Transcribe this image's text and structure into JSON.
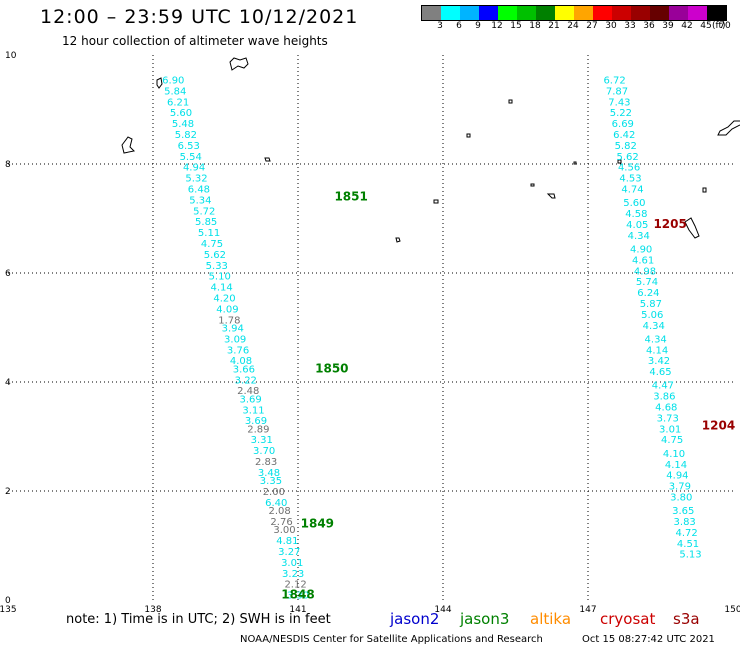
{
  "header": {
    "title": "12:00 – 23:59 UTC 10/12/2021",
    "subtitle": "12 hour collection of altimeter wave heights"
  },
  "legend": {
    "colors": [
      "#808080",
      "#00ffff",
      "#00b4ff",
      "#0000ff",
      "#00ff00",
      "#00c000",
      "#008000",
      "#ffff00",
      "#ffa500",
      "#ff0000",
      "#cc0000",
      "#990000",
      "#660000",
      "#990099",
      "#cc00cc",
      "#000000"
    ],
    "labels": [
      "3",
      "6",
      "9",
      "12",
      "15",
      "18",
      "21",
      "24",
      "27",
      "30",
      "33",
      "36",
      "39",
      "42",
      "45",
      "70"
    ],
    "unit": "(ft)"
  },
  "axes": {
    "x_ticks": [
      "135",
      "138",
      "141",
      "144",
      "147",
      "150"
    ],
    "y_ticks": [
      "0",
      "2",
      "4",
      "6",
      "8",
      "10"
    ]
  },
  "tracks": [
    {
      "satellite": "jason3",
      "points": [
        [
          "3.30",
          141.0,
          0.1,
          "cyan"
        ],
        [
          "2.12",
          140.95,
          0.3,
          "gray"
        ],
        [
          "3.23",
          140.9,
          0.5,
          "cyan"
        ],
        [
          "3.01",
          140.88,
          0.7,
          "cyan"
        ],
        [
          "3.27",
          140.82,
          0.9,
          "cyan"
        ],
        [
          "4.81",
          140.78,
          1.1,
          "cyan"
        ],
        [
          "3.00",
          140.72,
          1.3,
          "gray"
        ],
        [
          "2.76",
          140.66,
          1.45,
          "gray"
        ],
        [
          "2.08",
          140.62,
          1.65,
          "gray"
        ],
        [
          "6.40",
          140.55,
          1.8,
          "cyan"
        ],
        [
          "2.00",
          140.5,
          2.0,
          "gray"
        ],
        [
          "3.35",
          140.44,
          2.2,
          "cyan"
        ],
        [
          "3.48",
          140.4,
          2.35,
          "cyan"
        ],
        [
          "2.83",
          140.34,
          2.55,
          "gray"
        ],
        [
          "3.70",
          140.3,
          2.75,
          "cyan"
        ],
        [
          "3.31",
          140.25,
          2.95,
          "cyan"
        ],
        [
          "2.89",
          140.18,
          3.15,
          "gray"
        ],
        [
          "3.69",
          140.13,
          3.3,
          "cyan"
        ],
        [
          "3.11",
          140.08,
          3.5,
          "cyan"
        ],
        [
          "3.69",
          140.02,
          3.7,
          "cyan"
        ],
        [
          "2.48",
          139.97,
          3.85,
          "gray"
        ],
        [
          "3.22",
          139.92,
          4.05,
          "cyan"
        ],
        [
          "3.66",
          139.88,
          4.25,
          "cyan"
        ],
        [
          "4.08",
          139.82,
          4.4,
          "cyan"
        ],
        [
          "3.76",
          139.76,
          4.6,
          "cyan"
        ],
        [
          "3.09",
          139.7,
          4.8,
          "cyan"
        ],
        [
          "3.94",
          139.65,
          5.0,
          "cyan"
        ],
        [
          "1.78",
          139.58,
          5.15,
          "gray"
        ],
        [
          "4.09",
          139.54,
          5.35,
          "cyan"
        ],
        [
          "4.20",
          139.48,
          5.55,
          "cyan"
        ],
        [
          "4.14",
          139.42,
          5.75,
          "cyan"
        ],
        [
          "5.10",
          139.38,
          5.95,
          "cyan"
        ],
        [
          "5.33",
          139.32,
          6.15,
          "cyan"
        ],
        [
          "5.62",
          139.28,
          6.35,
          "cyan"
        ],
        [
          "4.75",
          139.22,
          6.55,
          "cyan"
        ],
        [
          "5.11",
          139.16,
          6.75,
          "cyan"
        ],
        [
          "5.85",
          139.1,
          6.95,
          "cyan"
        ],
        [
          "5.72",
          139.06,
          7.15,
          "cyan"
        ],
        [
          "5.34",
          138.98,
          7.35,
          "cyan"
        ],
        [
          "6.48",
          138.95,
          7.55,
          "cyan"
        ],
        [
          "5.32",
          138.9,
          7.75,
          "cyan"
        ],
        [
          "4.94",
          138.85,
          7.95,
          "cyan"
        ],
        [
          "5.54",
          138.78,
          8.15,
          "cyan"
        ],
        [
          "6.53",
          138.74,
          8.35,
          "cyan"
        ],
        [
          "5.82",
          138.68,
          8.55,
          "cyan"
        ],
        [
          "5.48",
          138.62,
          8.75,
          "cyan"
        ],
        [
          "5.60",
          138.58,
          8.95,
          "cyan"
        ],
        [
          "6.21",
          138.52,
          9.15,
          "cyan"
        ],
        [
          "5.84",
          138.46,
          9.35,
          "cyan"
        ],
        [
          "6.90",
          138.42,
          9.55,
          "cyan"
        ]
      ],
      "time_labels": [
        [
          "1848",
          141.0,
          0.1
        ],
        [
          "1849",
          141.4,
          1.4
        ],
        [
          "1850",
          141.7,
          4.25
        ],
        [
          "1851",
          142.1,
          7.4
        ]
      ]
    },
    {
      "satellite": "cryosat",
      "points": [
        [
          "6.72",
          147.55,
          9.55,
          "cyan"
        ],
        [
          "7.87",
          147.6,
          9.35,
          "cyan"
        ],
        [
          "7.43",
          147.65,
          9.15,
          "cyan"
        ],
        [
          "5.22",
          147.68,
          8.95,
          "cyan"
        ],
        [
          "6.69",
          147.72,
          8.75,
          "cyan"
        ],
        [
          "6.42",
          147.75,
          8.55,
          "cyan"
        ],
        [
          "5.82",
          147.78,
          8.35,
          "cyan"
        ],
        [
          "5.62",
          147.82,
          8.15,
          "cyan"
        ],
        [
          "4.56",
          147.85,
          7.95,
          "cyan"
        ],
        [
          "4.53",
          147.88,
          7.75,
          "cyan"
        ],
        [
          "4.74",
          147.92,
          7.55,
          "cyan"
        ],
        [
          "5.60",
          147.96,
          7.3,
          "cyan"
        ],
        [
          "4.58",
          148.0,
          7.1,
          "cyan"
        ],
        [
          "4.05",
          148.02,
          6.9,
          "cyan"
        ],
        [
          "4.34",
          148.05,
          6.7,
          "cyan"
        ],
        [
          "4.90",
          148.1,
          6.45,
          "cyan"
        ],
        [
          "4.61",
          148.14,
          6.25,
          "cyan"
        ],
        [
          "4.98",
          148.18,
          6.05,
          "cyan"
        ],
        [
          "5.74",
          148.22,
          5.85,
          "cyan"
        ],
        [
          "6.24",
          148.25,
          5.65,
          "cyan"
        ],
        [
          "5.87",
          148.3,
          5.45,
          "cyan"
        ],
        [
          "5.06",
          148.33,
          5.25,
          "cyan"
        ],
        [
          "4.34",
          148.36,
          5.05,
          "cyan"
        ],
        [
          "4.34",
          148.4,
          4.8,
          "cyan"
        ],
        [
          "4.14",
          148.43,
          4.6,
          "cyan"
        ],
        [
          "3.42",
          148.47,
          4.4,
          "cyan"
        ],
        [
          "4.65",
          148.5,
          4.2,
          "cyan"
        ],
        [
          "4.47",
          148.55,
          3.95,
          "cyan"
        ],
        [
          "3.86",
          148.58,
          3.75,
          "cyan"
        ],
        [
          "4.68",
          148.62,
          3.55,
          "cyan"
        ],
        [
          "3.73",
          148.65,
          3.35,
          "cyan"
        ],
        [
          "3.01",
          148.7,
          3.15,
          "cyan"
        ],
        [
          "4.75",
          148.74,
          2.95,
          "cyan"
        ],
        [
          "4.10",
          148.78,
          2.7,
          "cyan"
        ],
        [
          "4.14",
          148.82,
          2.5,
          "cyan"
        ],
        [
          "4.94",
          148.85,
          2.3,
          "cyan"
        ],
        [
          "3.79",
          148.9,
          2.1,
          "cyan"
        ],
        [
          "3.80",
          148.93,
          1.9,
          "cyan"
        ],
        [
          "3.65",
          148.97,
          1.65,
          "cyan"
        ],
        [
          "3.83",
          149.0,
          1.45,
          "cyan"
        ],
        [
          "4.72",
          149.04,
          1.25,
          "cyan"
        ],
        [
          "4.51",
          149.07,
          1.05,
          "cyan"
        ],
        [
          "5.13",
          149.12,
          0.85,
          "cyan"
        ]
      ],
      "time_labels": [
        [
          "1205",
          148.7,
          6.9
        ],
        [
          "1204",
          149.7,
          3.2
        ]
      ]
    }
  ],
  "footer": {
    "note": "note: 1) Time is in UTC; 2) SWH is in feet",
    "satellites": [
      {
        "name": "jason2",
        "color": "#0000cc"
      },
      {
        "name": "jason3",
        "color": "#008000"
      },
      {
        "name": "altika",
        "color": "#ff8c00"
      },
      {
        "name": "cryosat",
        "color": "#cc0000"
      },
      {
        "name": "s3a",
        "color": "#990000"
      }
    ],
    "credit": "NOAA/NESDIS Center for Satellite Applications and Research",
    "timestamp": "Oct 15 08:27:42 UTC 2021"
  },
  "colors": {
    "cyan": "#00e0e8",
    "gray": "#707070",
    "jason3_time": "#008000",
    "cryosat_time": "#990000"
  }
}
